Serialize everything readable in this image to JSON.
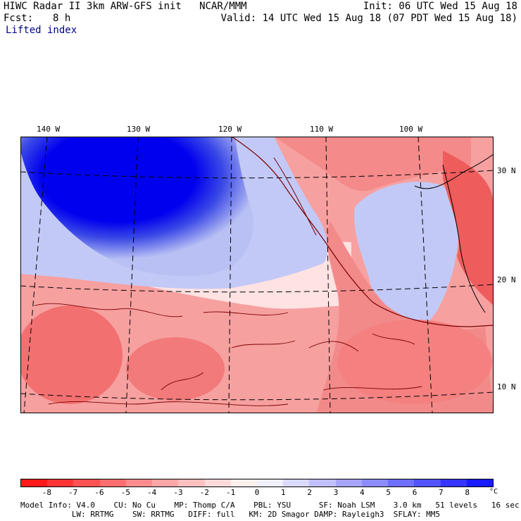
{
  "header": {
    "line1_left": "HIWC Radar II 3km ARW-GFS init   NCAR/MMM",
    "line1_right": "Init: 06 UTC Wed 15 Aug 18",
    "fcst_label": "Fcst:",
    "fcst_value": "8 h",
    "valid": "Valid: 14 UTC Wed 15 Aug 18 (07 PDT Wed 15 Aug 18)",
    "field": "Lifted index"
  },
  "map": {
    "lon_labels": [
      "140 W",
      "130 W",
      "120 W",
      "110 W",
      "100 W"
    ],
    "lat_labels": [
      "30 N",
      "20 N",
      "10 N"
    ],
    "colors": {
      "strong_stable": "#0000ee",
      "stable": "#b8c0f4",
      "neutral": "#ffe2e2",
      "unstable": "#f38a8a",
      "strong_unstable": "#e95050",
      "coast": "#7a0000"
    }
  },
  "colorbar": {
    "colors": [
      "#ff1a1a",
      "#ff3535",
      "#ff5252",
      "#ff6e6e",
      "#ff8c8c",
      "#ffa6a6",
      "#ffc0c0",
      "#ffdada",
      "#fff0f0",
      "#f0f0ff",
      "#dadaff",
      "#c0c0ff",
      "#a6a6ff",
      "#8c8cff",
      "#6e6eff",
      "#5252ff",
      "#3535ff",
      "#1a1aff"
    ],
    "ticks": [
      "-8",
      "-7",
      "-6",
      "-5",
      "-4",
      "-3",
      "-2",
      "-1",
      "0",
      "1",
      "2",
      "3",
      "4",
      "5",
      "6",
      "7",
      "8"
    ],
    "unit": "°C"
  },
  "footer": {
    "line1": "Model Info: V4.0    CU: No Cu    MP: Thomp C/A    PBL: YSU      SF: Noah LSM    3.0 km   51 levels   16 sec",
    "line2": "           LW: RRTMG    SW: RRTMG   DIFF: full   KM: 2D Smagor DAMP: Rayleigh3  SFLAY: MM5"
  }
}
